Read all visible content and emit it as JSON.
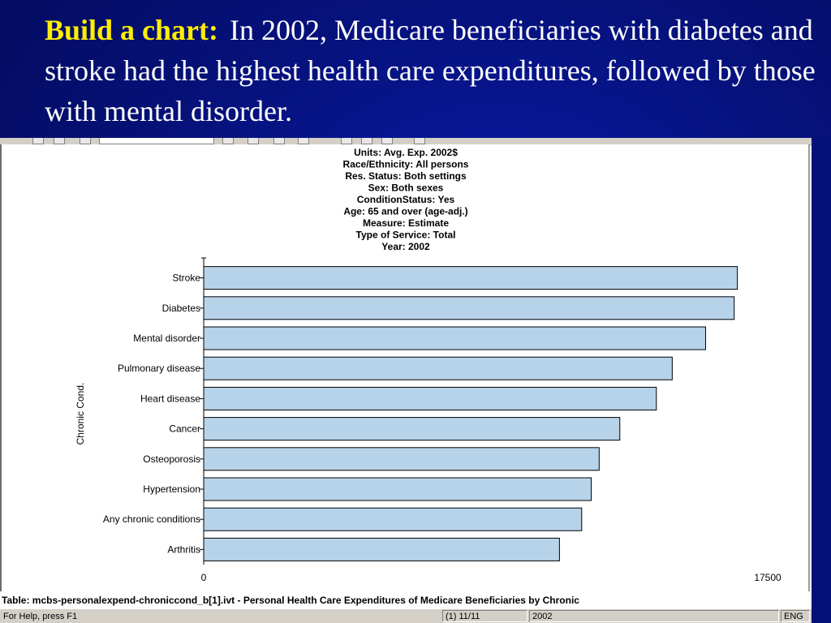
{
  "slide": {
    "title_lead": "Build a chart:",
    "title_text": "In 2002, Medicare beneficiaries with diabetes and stroke had the highest health care expenditures, followed by those with mental disorder."
  },
  "chart_data": {
    "type": "bar",
    "orientation": "horizontal",
    "header_lines": [
      "Units: Avg. Exp. 2002$",
      "Race/Ethnicity: All persons",
      "Res. Status: Both settings",
      "Sex: Both sexes",
      "ConditionStatus: Yes",
      "Age: 65 and over (age-adj.)",
      "Measure: Estimate",
      "Type of Service: Total",
      "Year: 2002"
    ],
    "categories": [
      "Stroke",
      "Diabetes",
      "Mental disorder",
      "Pulmonary disease",
      "Heart disease",
      "Cancer",
      "Osteoporosis",
      "Hypertension",
      "Any chronic conditions",
      "Arthritis"
    ],
    "values": [
      16800,
      16700,
      15800,
      14750,
      14250,
      13100,
      12450,
      12200,
      11900,
      11200
    ],
    "ylabel": "Chronic Cond.",
    "xlim": [
      0,
      17500
    ],
    "x_tick_labels": [
      "0",
      "17500"
    ],
    "bar_color": "#b7d3ea",
    "grid": false
  },
  "caption": "Table: mcbs-personalexpend-chroniccond_b[1].ivt - Personal Health Care Expenditures of Medicare Beneficiaries by Chronic",
  "statusbar": {
    "help": "For Help, press F1",
    "page": "(1) 11/11",
    "year": "2002",
    "lang": "ENG"
  },
  "colors": {
    "slide_background": "#06127e",
    "title_lead": "#ffee00",
    "title_text": "#ffffff"
  }
}
